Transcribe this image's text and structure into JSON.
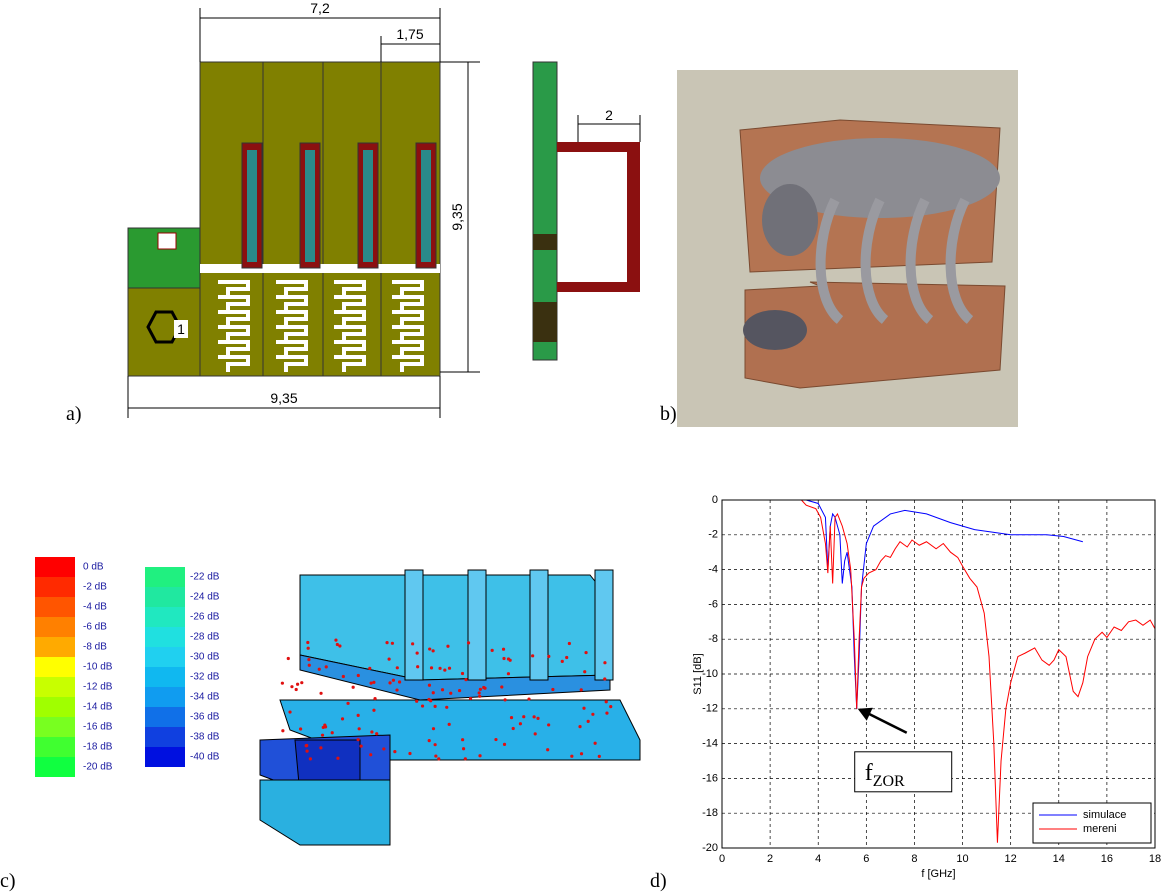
{
  "panel_labels": [
    "a)",
    "b)",
    "c)",
    "d)"
  ],
  "panel_a": {
    "dimensions": [
      "7,2",
      "1,75",
      "9,35",
      "9,35"
    ],
    "port_label": "1",
    "side_dimension": "2"
  },
  "panel_c": {
    "scale": [
      {
        "label": "0 dB",
        "color": "#ff0000"
      },
      {
        "label": "-2 dB",
        "color": "#ff2a00"
      },
      {
        "label": "-4 dB",
        "color": "#ff5500"
      },
      {
        "label": "-6 dB",
        "color": "#ff8000"
      },
      {
        "label": "-8 dB",
        "color": "#ffaa00"
      },
      {
        "label": "-10 dB",
        "color": "#ffff00"
      },
      {
        "label": "-12 dB",
        "color": "#c8ff00"
      },
      {
        "label": "-14 dB",
        "color": "#a0ff00"
      },
      {
        "label": "-16 dB",
        "color": "#78ff20"
      },
      {
        "label": "-18 dB",
        "color": "#40ff30"
      },
      {
        "label": "-20 dB",
        "color": "#10ff40"
      },
      {
        "label": "-22 dB",
        "color": "#20f080"
      },
      {
        "label": "-24 dB",
        "color": "#20e8a0"
      },
      {
        "label": "-26 dB",
        "color": "#20e8c0"
      },
      {
        "label": "-28 dB",
        "color": "#20e0e0"
      },
      {
        "label": "-30 dB",
        "color": "#20d0f0"
      },
      {
        "label": "-32 dB",
        "color": "#10b8f0"
      },
      {
        "label": "-34 dB",
        "color": "#109cf0"
      },
      {
        "label": "-36 dB",
        "color": "#1070e8"
      },
      {
        "label": "-38 dB",
        "color": "#1040e0"
      },
      {
        "label": "-40 dB",
        "color": "#0010e0"
      }
    ]
  },
  "chart_data": {
    "type": "line",
    "xlabel": "f [GHz]",
    "ylabel": "S11 [dB]",
    "xlim": [
      0,
      18
    ],
    "ylim": [
      -20,
      0
    ],
    "xticks": [
      0,
      2,
      4,
      6,
      8,
      10,
      12,
      14,
      16,
      18
    ],
    "yticks": [
      0,
      -2,
      -4,
      -6,
      -8,
      -10,
      -12,
      -14,
      -16,
      -18,
      -20
    ],
    "grid": true,
    "legend": "lower right",
    "annotation": {
      "text": "f",
      "subscript": "ZOR",
      "x": 5.6,
      "y": -12
    },
    "series": [
      {
        "name": "simulace",
        "color": "#0000ff",
        "x": [
          0,
          3.5,
          4.0,
          4.3,
          4.4,
          4.5,
          4.6,
          4.7,
          4.9,
          5.0,
          5.1,
          5.2,
          5.4,
          5.5,
          5.6,
          5.7,
          5.8,
          6.0,
          6.3,
          7.0,
          7.6,
          8.5,
          9.5,
          10.5,
          12.0,
          13.5,
          14.2,
          15.0
        ],
        "values": [
          0,
          0,
          -0.2,
          -1,
          -4,
          -1.5,
          -0.8,
          -1,
          -2,
          -4.8,
          -3.5,
          -3,
          -5,
          -9,
          -12,
          -9,
          -5,
          -2.5,
          -1.5,
          -0.8,
          -0.6,
          -0.8,
          -1.3,
          -1.7,
          -2.0,
          -2.0,
          -2.1,
          -2.4
        ]
      },
      {
        "name": "mereni",
        "color": "#ff0000",
        "x": [
          3.3,
          3.5,
          3.9,
          4.1,
          4.3,
          4.4,
          4.5,
          4.6,
          4.7,
          4.8,
          5.0,
          5.2,
          5.35,
          5.5,
          5.6,
          5.7,
          5.8,
          5.9,
          6.1,
          6.4,
          6.6,
          6.8,
          7.0,
          7.2,
          7.4,
          7.7,
          7.9,
          8.2,
          8.5,
          8.9,
          9.2,
          9.5,
          9.8,
          10.0,
          10.3,
          10.6,
          10.9,
          11.1,
          11.3,
          11.45,
          11.6,
          11.8,
          12.0,
          12.3,
          12.6,
          13.0,
          13.3,
          13.6,
          13.8,
          14.0,
          14.3,
          14.6,
          14.8,
          15.0,
          15.2,
          15.5,
          15.8,
          16.0,
          16.3,
          16.6,
          16.9,
          17.2,
          17.5,
          17.8,
          18.0
        ],
        "values": [
          0,
          -0.3,
          -0.5,
          -1.0,
          -2.5,
          -4.2,
          -1.5,
          -4.8,
          -1,
          -0.8,
          -1.5,
          -2.5,
          -4,
          -8,
          -12,
          -8,
          -5,
          -4.5,
          -4.2,
          -4.0,
          -3.5,
          -3.2,
          -3.3,
          -2.8,
          -2.4,
          -2.7,
          -2.3,
          -2.6,
          -2.4,
          -2.8,
          -2.5,
          -3.0,
          -3.3,
          -3.8,
          -4.5,
          -5.0,
          -6.5,
          -9,
          -14,
          -19.7,
          -15,
          -12,
          -10.5,
          -9.0,
          -8.8,
          -8.5,
          -9.2,
          -9.5,
          -9.2,
          -8.6,
          -9.0,
          -11.0,
          -11.3,
          -10.5,
          -9.0,
          -8.0,
          -7.6,
          -7.9,
          -7.3,
          -7.5,
          -7.0,
          -6.9,
          -7.2,
          -6.9,
          -7.4
        ]
      }
    ]
  }
}
